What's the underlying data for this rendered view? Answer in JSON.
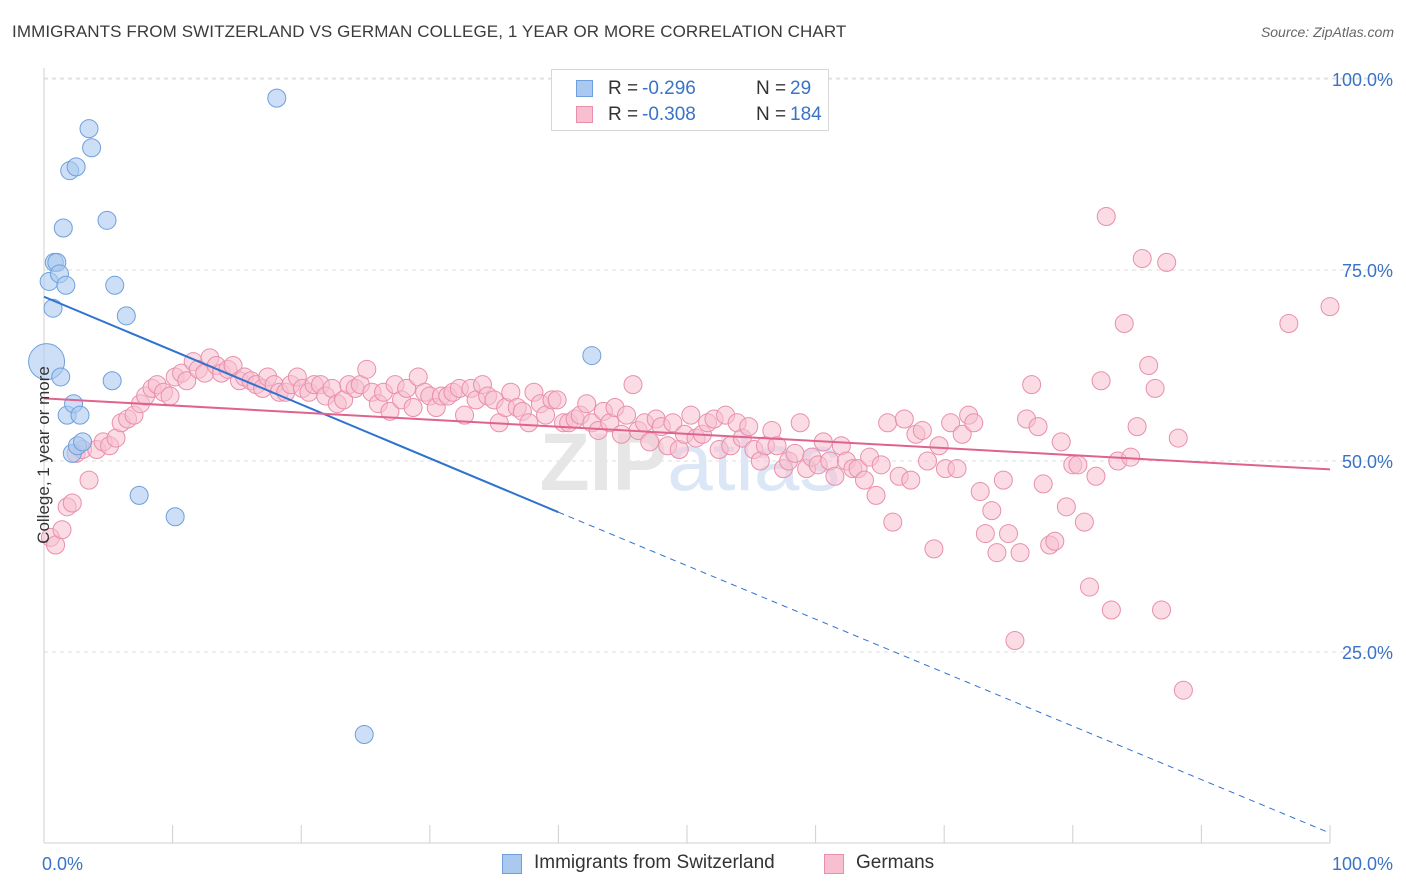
{
  "header": {
    "title": "IMMIGRANTS FROM SWITZERLAND VS GERMAN COLLEGE, 1 YEAR OR MORE CORRELATION CHART",
    "source": "Source: ZipAtlas.com"
  },
  "watermark": "ZIPatlas",
  "legend": {
    "rows": [
      {
        "r_label": "R =",
        "r_value": "-0.296",
        "n_label": "N =",
        "n_value": "29"
      },
      {
        "r_label": "R =",
        "r_value": "-0.308",
        "n_label": "N =",
        "n_value": "184"
      }
    ],
    "bottom": [
      {
        "label": "Immigrants from Switzerland"
      },
      {
        "label": "Germans"
      }
    ]
  },
  "chart_data": {
    "type": "scatter",
    "title": "IMMIGRANTS FROM SWITZERLAND VS GERMAN COLLEGE, 1 YEAR OR MORE CORRELATION CHART",
    "xlabel": "",
    "ylabel": "College, 1 year or more",
    "xlim": [
      0,
      100
    ],
    "ylim": [
      0,
      105
    ],
    "x_tick_labels": [
      "0.0%",
      "100.0%"
    ],
    "y_tick_labels": [
      "25.0%",
      "50.0%",
      "75.0%",
      "100.0%"
    ],
    "y_ticks": [
      25,
      50,
      75,
      100
    ],
    "grid": "horizontal dashed",
    "legend_placement": "top-center",
    "colors": {
      "swiss_fill": "#aac9f0",
      "swiss_stroke": "#6f9fdc",
      "swiss_line": "#2f72cf",
      "german_fill": "#f7bfd0",
      "german_stroke": "#e98fac",
      "german_line": "#e0628e",
      "tick_label": "#3a73c6"
    },
    "series": [
      {
        "name": "Immigrants from Switzerland",
        "trend": {
          "x0": 0,
          "y0": 71.5,
          "x1": 40,
          "y1": 43.3,
          "dash_to_x": 100,
          "dash_to_y": 1.3
        },
        "points": [
          [
            0.2,
            63.0,
            18
          ],
          [
            0.4,
            73.5,
            9
          ],
          [
            0.7,
            70,
            9
          ],
          [
            0.8,
            76,
            9
          ],
          [
            1.0,
            76,
            9
          ],
          [
            1.2,
            74.5,
            9
          ],
          [
            1.3,
            61,
            9
          ],
          [
            1.5,
            80.5,
            9
          ],
          [
            1.7,
            73,
            9
          ],
          [
            1.8,
            56,
            9
          ],
          [
            2.0,
            88,
            9
          ],
          [
            2.2,
            51,
            9
          ],
          [
            2.3,
            57.5,
            9
          ],
          [
            2.5,
            88.5,
            9
          ],
          [
            2.6,
            52,
            9
          ],
          [
            2.8,
            56,
            9
          ],
          [
            3.0,
            52.5,
            9
          ],
          [
            3.5,
            93.5,
            9
          ],
          [
            3.7,
            91,
            9
          ],
          [
            4.9,
            81.5,
            9
          ],
          [
            5.3,
            60.5,
            9
          ],
          [
            5.5,
            73,
            9
          ],
          [
            6.4,
            69,
            9
          ],
          [
            7.4,
            45.5,
            9
          ],
          [
            10.2,
            42.7,
            9
          ],
          [
            18.1,
            97.5,
            9
          ],
          [
            24.9,
            14.2,
            9
          ],
          [
            42.6,
            63.8,
            9
          ]
        ]
      },
      {
        "name": "Germans",
        "trend": {
          "x0": 0,
          "y0": 58.2,
          "x1": 100,
          "y1": 48.9
        },
        "points": [
          [
            0.5,
            40
          ],
          [
            0.9,
            39
          ],
          [
            1.4,
            41
          ],
          [
            1.8,
            44
          ],
          [
            2.2,
            44.5
          ],
          [
            2.5,
            51
          ],
          [
            3.0,
            51.5
          ],
          [
            3.5,
            47.5
          ],
          [
            4.1,
            51.5
          ],
          [
            4.6,
            52.5
          ],
          [
            5.1,
            52
          ],
          [
            5.6,
            53
          ],
          [
            6.0,
            55
          ],
          [
            6.5,
            55.5
          ],
          [
            7.0,
            56
          ],
          [
            7.5,
            57.5
          ],
          [
            7.9,
            58.5
          ],
          [
            8.4,
            59.5
          ],
          [
            8.8,
            60
          ],
          [
            9.3,
            59
          ],
          [
            9.8,
            58.5
          ],
          [
            10.2,
            61
          ],
          [
            10.7,
            61.5
          ],
          [
            11.1,
            60.5
          ],
          [
            11.6,
            63
          ],
          [
            12.0,
            62
          ],
          [
            12.5,
            61.5
          ],
          [
            12.9,
            63.5
          ],
          [
            13.4,
            62.5
          ],
          [
            13.8,
            61.5
          ],
          [
            14.3,
            62
          ],
          [
            14.7,
            62.5
          ],
          [
            15.2,
            60.5
          ],
          [
            15.6,
            61
          ],
          [
            16.1,
            60.5
          ],
          [
            16.5,
            60
          ],
          [
            17.0,
            59.5
          ],
          [
            17.4,
            61
          ],
          [
            17.9,
            60
          ],
          [
            18.3,
            59
          ],
          [
            18.8,
            59
          ],
          [
            19.2,
            60
          ],
          [
            19.7,
            61
          ],
          [
            20.1,
            59.5
          ],
          [
            20.6,
            59
          ],
          [
            21.0,
            60
          ],
          [
            21.5,
            60
          ],
          [
            21.9,
            58.5
          ],
          [
            22.4,
            59.5
          ],
          [
            22.8,
            57.5
          ],
          [
            23.3,
            58
          ],
          [
            23.7,
            60
          ],
          [
            24.2,
            59.5
          ],
          [
            24.6,
            60
          ],
          [
            25.1,
            62
          ],
          [
            25.5,
            59
          ],
          [
            26.0,
            57.5
          ],
          [
            26.4,
            59
          ],
          [
            26.9,
            56.5
          ],
          [
            27.3,
            60
          ],
          [
            27.8,
            58
          ],
          [
            28.2,
            59.5
          ],
          [
            28.7,
            57
          ],
          [
            29.1,
            61
          ],
          [
            29.6,
            59
          ],
          [
            30.0,
            58.5
          ],
          [
            30.5,
            57
          ],
          [
            30.9,
            58.5
          ],
          [
            31.4,
            58.5
          ],
          [
            31.8,
            59
          ],
          [
            32.3,
            59.5
          ],
          [
            32.7,
            56
          ],
          [
            33.2,
            59.5
          ],
          [
            33.6,
            58
          ],
          [
            34.1,
            60
          ],
          [
            34.5,
            58.5
          ],
          [
            35.0,
            58
          ],
          [
            35.4,
            55
          ],
          [
            35.9,
            57
          ],
          [
            36.3,
            59
          ],
          [
            36.8,
            57
          ],
          [
            37.2,
            56.5
          ],
          [
            37.7,
            55
          ],
          [
            38.1,
            59
          ],
          [
            38.6,
            57.5
          ],
          [
            39.0,
            56
          ],
          [
            39.5,
            58
          ],
          [
            39.9,
            58
          ],
          [
            40.4,
            55
          ],
          [
            40.8,
            55
          ],
          [
            41.3,
            55.5
          ],
          [
            41.7,
            56
          ],
          [
            42.2,
            57.5
          ],
          [
            42.6,
            55
          ],
          [
            43.1,
            54
          ],
          [
            43.5,
            56.5
          ],
          [
            44.0,
            55
          ],
          [
            44.4,
            57
          ],
          [
            44.9,
            53.5
          ],
          [
            45.3,
            56
          ],
          [
            45.8,
            60
          ],
          [
            46.2,
            54
          ],
          [
            46.7,
            55
          ],
          [
            47.1,
            52.5
          ],
          [
            47.6,
            55.5
          ],
          [
            48.0,
            54.5
          ],
          [
            48.5,
            52
          ],
          [
            48.9,
            55
          ],
          [
            49.4,
            51.5
          ],
          [
            49.8,
            53.5
          ],
          [
            50.3,
            56
          ],
          [
            50.7,
            53
          ],
          [
            51.2,
            53.5
          ],
          [
            51.6,
            55
          ],
          [
            52.1,
            55.5
          ],
          [
            52.5,
            51.5
          ],
          [
            53.0,
            56
          ],
          [
            53.4,
            52
          ],
          [
            53.9,
            55
          ],
          [
            54.3,
            53
          ],
          [
            54.8,
            54.5
          ],
          [
            55.2,
            51.5
          ],
          [
            55.7,
            50
          ],
          [
            56.1,
            52
          ],
          [
            56.6,
            54
          ],
          [
            57.0,
            52
          ],
          [
            57.5,
            49
          ],
          [
            57.9,
            50
          ],
          [
            58.4,
            51
          ],
          [
            58.8,
            55
          ],
          [
            59.3,
            49
          ],
          [
            59.7,
            50.5
          ],
          [
            60.2,
            49.5
          ],
          [
            60.6,
            52.5
          ],
          [
            61.1,
            50
          ],
          [
            61.5,
            48
          ],
          [
            62.0,
            52
          ],
          [
            62.4,
            50
          ],
          [
            62.9,
            49
          ],
          [
            63.3,
            49
          ],
          [
            63.8,
            47.5
          ],
          [
            64.2,
            50.5
          ],
          [
            64.7,
            45.5
          ],
          [
            65.1,
            49.5
          ],
          [
            65.6,
            55
          ],
          [
            66.0,
            42
          ],
          [
            66.5,
            48
          ],
          [
            66.9,
            55.5
          ],
          [
            67.4,
            47.5
          ],
          [
            67.8,
            53.5
          ],
          [
            68.3,
            54
          ],
          [
            68.7,
            50
          ],
          [
            69.2,
            38.5
          ],
          [
            69.6,
            52
          ],
          [
            70.1,
            49
          ],
          [
            70.5,
            55
          ],
          [
            71.0,
            49
          ],
          [
            71.4,
            53.5
          ],
          [
            71.9,
            56
          ],
          [
            72.3,
            55
          ],
          [
            72.8,
            46
          ],
          [
            73.2,
            40.5
          ],
          [
            73.7,
            43.5
          ],
          [
            74.1,
            38
          ],
          [
            74.6,
            47.5
          ],
          [
            75.0,
            40.5
          ],
          [
            75.5,
            26.5
          ],
          [
            75.9,
            38
          ],
          [
            76.4,
            55.5
          ],
          [
            76.8,
            60
          ],
          [
            77.3,
            54.5
          ],
          [
            77.7,
            47
          ],
          [
            78.2,
            39
          ],
          [
            78.6,
            39.5
          ],
          [
            79.1,
            52.5
          ],
          [
            79.5,
            44
          ],
          [
            80.0,
            49.5
          ],
          [
            80.4,
            49.5
          ],
          [
            80.9,
            42
          ],
          [
            81.3,
            33.5
          ],
          [
            81.8,
            48
          ],
          [
            82.2,
            60.5
          ],
          [
            82.6,
            82
          ],
          [
            83.0,
            30.5
          ],
          [
            83.5,
            50
          ],
          [
            84.0,
            68
          ],
          [
            84.5,
            50.5
          ],
          [
            85.0,
            54.5
          ],
          [
            85.4,
            76.5
          ],
          [
            85.9,
            62.5
          ],
          [
            86.4,
            59.5
          ],
          [
            86.9,
            30.5
          ],
          [
            87.3,
            76
          ],
          [
            88.2,
            53
          ],
          [
            88.6,
            20
          ],
          [
            96.8,
            68
          ],
          [
            100,
            70.2
          ]
        ]
      }
    ]
  }
}
